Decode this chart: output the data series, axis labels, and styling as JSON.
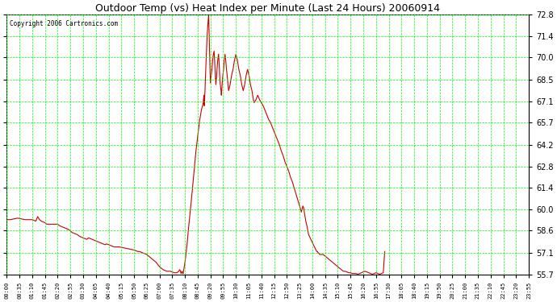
{
  "title": "Outdoor Temp (vs) Heat Index per Minute (Last 24 Hours) 20060914",
  "copyright": "Copyright 2006 Cartronics.com",
  "bg_color": "#ffffff",
  "plot_bg_color": "#ffffff",
  "grid_color": "#00ff00",
  "line_color": "#cc0000",
  "yticks": [
    55.7,
    57.1,
    58.6,
    60.0,
    61.4,
    62.8,
    64.2,
    65.7,
    67.1,
    68.5,
    70.0,
    71.4,
    72.8
  ],
  "ymin": 55.7,
  "ymax": 72.8,
  "xtick_labels": [
    "00:00",
    "00:35",
    "01:10",
    "01:45",
    "02:20",
    "02:55",
    "03:30",
    "04:05",
    "04:40",
    "05:15",
    "05:50",
    "06:25",
    "07:00",
    "07:35",
    "08:10",
    "08:45",
    "09:20",
    "09:55",
    "10:30",
    "11:05",
    "11:40",
    "12:15",
    "12:50",
    "13:25",
    "14:00",
    "14:35",
    "15:10",
    "15:45",
    "16:20",
    "16:55",
    "17:30",
    "18:05",
    "18:40",
    "19:15",
    "19:50",
    "20:25",
    "21:00",
    "21:35",
    "22:10",
    "22:45",
    "23:20",
    "23:55"
  ],
  "n_xticks": 42,
  "curve_points": [
    [
      0,
      59.3
    ],
    [
      10,
      59.3
    ],
    [
      20,
      59.35
    ],
    [
      30,
      59.4
    ],
    [
      40,
      59.35
    ],
    [
      50,
      59.3
    ],
    [
      60,
      59.3
    ],
    [
      70,
      59.3
    ],
    [
      80,
      59.2
    ],
    [
      85,
      59.5
    ],
    [
      90,
      59.3
    ],
    [
      95,
      59.2
    ],
    [
      100,
      59.15
    ],
    [
      105,
      59.1
    ],
    [
      110,
      59.0
    ],
    [
      120,
      59.0
    ],
    [
      130,
      59.0
    ],
    [
      135,
      59.0
    ],
    [
      140,
      59.0
    ],
    [
      145,
      58.9
    ],
    [
      150,
      58.85
    ],
    [
      155,
      58.8
    ],
    [
      160,
      58.75
    ],
    [
      165,
      58.7
    ],
    [
      170,
      58.65
    ],
    [
      175,
      58.55
    ],
    [
      180,
      58.45
    ],
    [
      185,
      58.4
    ],
    [
      190,
      58.35
    ],
    [
      195,
      58.3
    ],
    [
      200,
      58.2
    ],
    [
      210,
      58.1
    ],
    [
      215,
      58.05
    ],
    [
      220,
      58.0
    ],
    [
      225,
      58.1
    ],
    [
      230,
      58.05
    ],
    [
      235,
      58.0
    ],
    [
      240,
      57.95
    ],
    [
      245,
      57.9
    ],
    [
      250,
      57.85
    ],
    [
      255,
      57.8
    ],
    [
      260,
      57.75
    ],
    [
      265,
      57.7
    ],
    [
      270,
      57.65
    ],
    [
      275,
      57.7
    ],
    [
      280,
      57.65
    ],
    [
      285,
      57.6
    ],
    [
      290,
      57.55
    ],
    [
      295,
      57.5
    ],
    [
      300,
      57.5
    ],
    [
      310,
      57.5
    ],
    [
      320,
      57.45
    ],
    [
      330,
      57.4
    ],
    [
      340,
      57.35
    ],
    [
      350,
      57.3
    ],
    [
      355,
      57.25
    ],
    [
      360,
      57.2
    ],
    [
      365,
      57.2
    ],
    [
      370,
      57.15
    ],
    [
      375,
      57.1
    ],
    [
      380,
      57.05
    ],
    [
      385,
      57.0
    ],
    [
      390,
      56.9
    ],
    [
      395,
      56.8
    ],
    [
      400,
      56.7
    ],
    [
      405,
      56.6
    ],
    [
      410,
      56.5
    ],
    [
      415,
      56.35
    ],
    [
      420,
      56.2
    ],
    [
      425,
      56.1
    ],
    [
      430,
      56.0
    ],
    [
      435,
      55.95
    ],
    [
      440,
      55.9
    ],
    [
      445,
      55.9
    ],
    [
      450,
      55.9
    ],
    [
      455,
      55.85
    ],
    [
      460,
      55.8
    ],
    [
      465,
      55.8
    ],
    [
      468,
      55.8
    ],
    [
      470,
      55.85
    ],
    [
      473,
      55.9
    ],
    [
      475,
      56.0
    ],
    [
      477,
      55.95
    ],
    [
      478,
      55.85
    ],
    [
      479,
      55.75
    ],
    [
      480,
      55.8
    ],
    [
      481,
      55.85
    ],
    [
      482,
      55.9
    ],
    [
      483,
      55.8
    ],
    [
      484,
      55.75
    ],
    [
      485,
      55.75
    ],
    [
      490,
      56.5
    ],
    [
      495,
      57.5
    ],
    [
      500,
      58.8
    ],
    [
      505,
      60.0
    ],
    [
      510,
      61.2
    ],
    [
      515,
      62.5
    ],
    [
      520,
      63.8
    ],
    [
      525,
      64.8
    ],
    [
      530,
      65.8
    ],
    [
      535,
      66.5
    ],
    [
      540,
      67.0
    ],
    [
      542,
      67.5
    ],
    [
      543,
      66.8
    ],
    [
      544,
      67.2
    ],
    [
      545,
      67.8
    ],
    [
      546,
      68.5
    ],
    [
      547,
      69.2
    ],
    [
      548,
      69.8
    ],
    [
      549,
      70.4
    ],
    [
      550,
      71.0
    ],
    [
      551,
      71.5
    ],
    [
      552,
      71.8
    ],
    [
      553,
      72.2
    ],
    [
      554,
      72.5
    ],
    [
      555,
      72.8
    ],
    [
      556,
      72.0
    ],
    [
      557,
      71.0
    ],
    [
      558,
      70.0
    ],
    [
      559,
      69.0
    ],
    [
      560,
      68.3
    ],
    [
      562,
      68.8
    ],
    [
      564,
      69.2
    ],
    [
      566,
      69.8
    ],
    [
      568,
      70.2
    ],
    [
      570,
      70.4
    ],
    [
      571,
      70.0
    ],
    [
      572,
      69.5
    ],
    [
      573,
      69.0
    ],
    [
      574,
      68.5
    ],
    [
      575,
      68.2
    ],
    [
      576,
      68.5
    ],
    [
      577,
      68.8
    ],
    [
      578,
      69.2
    ],
    [
      579,
      69.5
    ],
    [
      580,
      69.8
    ],
    [
      581,
      70.0
    ],
    [
      582,
      70.2
    ],
    [
      583,
      70.0
    ],
    [
      584,
      69.5
    ],
    [
      585,
      69.0
    ],
    [
      586,
      68.5
    ],
    [
      587,
      68.2
    ],
    [
      588,
      68.0
    ],
    [
      589,
      67.8
    ],
    [
      590,
      67.5
    ],
    [
      591,
      67.8
    ],
    [
      592,
      68.2
    ],
    [
      593,
      68.5
    ],
    [
      594,
      68.8
    ],
    [
      595,
      69.0
    ],
    [
      596,
      69.2
    ],
    [
      597,
      69.5
    ],
    [
      598,
      69.8
    ],
    [
      599,
      70.0
    ],
    [
      600,
      70.2
    ],
    [
      601,
      70.0
    ],
    [
      602,
      69.8
    ],
    [
      603,
      69.5
    ],
    [
      604,
      69.2
    ],
    [
      605,
      69.0
    ],
    [
      606,
      68.8
    ],
    [
      607,
      68.5
    ],
    [
      608,
      68.2
    ],
    [
      609,
      68.0
    ],
    [
      610,
      67.8
    ],
    [
      612,
      68.0
    ],
    [
      614,
      68.2
    ],
    [
      616,
      68.5
    ],
    [
      618,
      68.8
    ],
    [
      620,
      69.0
    ],
    [
      622,
      69.2
    ],
    [
      624,
      69.5
    ],
    [
      626,
      69.8
    ],
    [
      628,
      70.0
    ],
    [
      630,
      70.2
    ],
    [
      632,
      70.0
    ],
    [
      634,
      69.8
    ],
    [
      636,
      69.5
    ],
    [
      638,
      69.2
    ],
    [
      640,
      69.0
    ],
    [
      642,
      68.8
    ],
    [
      644,
      68.5
    ],
    [
      646,
      68.2
    ],
    [
      648,
      68.0
    ],
    [
      650,
      67.8
    ],
    [
      652,
      68.0
    ],
    [
      654,
      68.2
    ],
    [
      656,
      68.5
    ],
    [
      658,
      68.8
    ],
    [
      660,
      69.0
    ],
    [
      662,
      69.2
    ],
    [
      664,
      69.0
    ],
    [
      666,
      68.8
    ],
    [
      668,
      68.5
    ],
    [
      670,
      68.2
    ],
    [
      672,
      68.0
    ],
    [
      674,
      67.8
    ],
    [
      676,
      67.5
    ],
    [
      678,
      67.2
    ],
    [
      680,
      67.0
    ],
    [
      685,
      67.2
    ],
    [
      690,
      67.5
    ],
    [
      695,
      67.2
    ],
    [
      700,
      67.0
    ],
    [
      705,
      66.8
    ],
    [
      710,
      66.5
    ],
    [
      715,
      66.2
    ],
    [
      720,
      65.9
    ],
    [
      725,
      65.7
    ],
    [
      730,
      65.4
    ],
    [
      735,
      65.1
    ],
    [
      740,
      64.8
    ],
    [
      745,
      64.5
    ],
    [
      750,
      64.2
    ],
    [
      755,
      63.8
    ],
    [
      760,
      63.5
    ],
    [
      765,
      63.1
    ],
    [
      770,
      62.8
    ],
    [
      775,
      62.5
    ],
    [
      780,
      62.1
    ],
    [
      785,
      61.8
    ],
    [
      790,
      61.4
    ],
    [
      795,
      61.0
    ],
    [
      800,
      60.6
    ],
    [
      805,
      60.2
    ],
    [
      810,
      59.8
    ],
    [
      812,
      60.0
    ],
    [
      814,
      60.2
    ],
    [
      816,
      60.1
    ],
    [
      818,
      59.8
    ],
    [
      820,
      59.5
    ],
    [
      822,
      59.2
    ],
    [
      824,
      59.0
    ],
    [
      826,
      58.8
    ],
    [
      828,
      58.5
    ],
    [
      830,
      58.3
    ],
    [
      832,
      58.2
    ],
    [
      834,
      58.1
    ],
    [
      836,
      58.0
    ],
    [
      838,
      57.9
    ],
    [
      840,
      57.8
    ],
    [
      842,
      57.7
    ],
    [
      844,
      57.6
    ],
    [
      846,
      57.5
    ],
    [
      848,
      57.4
    ],
    [
      850,
      57.3
    ],
    [
      852,
      57.2
    ],
    [
      854,
      57.2
    ],
    [
      856,
      57.1
    ],
    [
      858,
      57.1
    ],
    [
      860,
      57.0
    ],
    [
      865,
      57.0
    ],
    [
      870,
      57.0
    ],
    [
      875,
      56.9
    ],
    [
      880,
      56.8
    ],
    [
      885,
      56.7
    ],
    [
      890,
      56.6
    ],
    [
      895,
      56.5
    ],
    [
      900,
      56.4
    ],
    [
      905,
      56.3
    ],
    [
      910,
      56.2
    ],
    [
      915,
      56.1
    ],
    [
      920,
      56.0
    ],
    [
      925,
      55.9
    ],
    [
      930,
      55.9
    ],
    [
      935,
      55.85
    ],
    [
      940,
      55.8
    ],
    [
      945,
      55.8
    ],
    [
      950,
      55.75
    ],
    [
      955,
      55.75
    ],
    [
      960,
      55.75
    ],
    [
      965,
      55.7
    ],
    [
      970,
      55.75
    ],
    [
      975,
      55.8
    ],
    [
      980,
      55.85
    ],
    [
      985,
      55.9
    ],
    [
      990,
      55.85
    ],
    [
      995,
      55.8
    ],
    [
      1000,
      55.75
    ],
    [
      1005,
      55.7
    ],
    [
      1010,
      55.75
    ],
    [
      1015,
      55.8
    ],
    [
      1020,
      55.75
    ],
    [
      1025,
      55.7
    ],
    [
      1030,
      55.75
    ],
    [
      1035,
      55.8
    ],
    [
      1039,
      57.2
    ]
  ]
}
